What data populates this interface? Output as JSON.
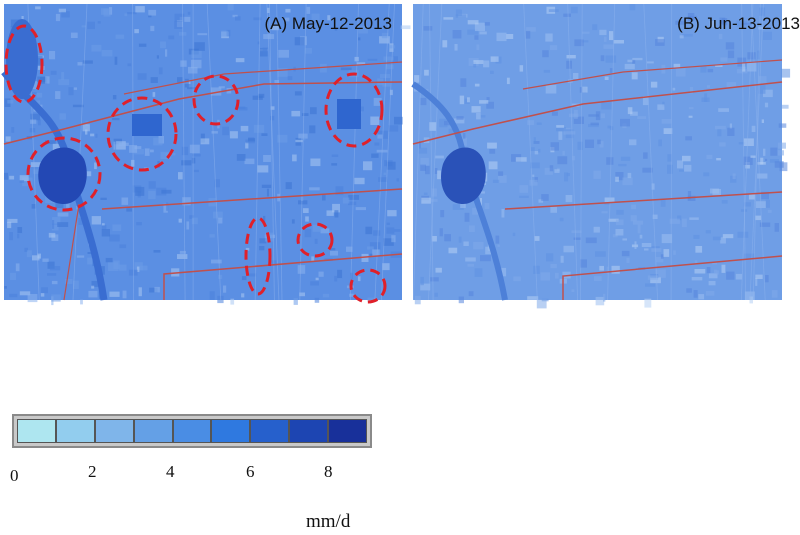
{
  "panels": [
    {
      "id": "A",
      "title": "(A) May-12-2013",
      "base_color": "#5b8fe3",
      "label_color": "#5570a0"
    },
    {
      "id": "B",
      "title": "(B) Jun-13-2013",
      "base_color": "#6f9ee6",
      "label_color": "#5570a0"
    }
  ],
  "legend": {
    "colors": [
      "#aee6f0",
      "#92cdee",
      "#7fb5ea",
      "#64a0e6",
      "#4a8de4",
      "#2f79e0",
      "#2660cc",
      "#1d45b2",
      "#18309a"
    ],
    "ticks": [
      "0",
      "2",
      "4",
      "6",
      "8"
    ],
    "unit": "mm/d"
  },
  "colors": {
    "road": "#c0504d",
    "highlight": "#e0202a",
    "lake": "#2348b4",
    "river": "#3a6dd1"
  }
}
